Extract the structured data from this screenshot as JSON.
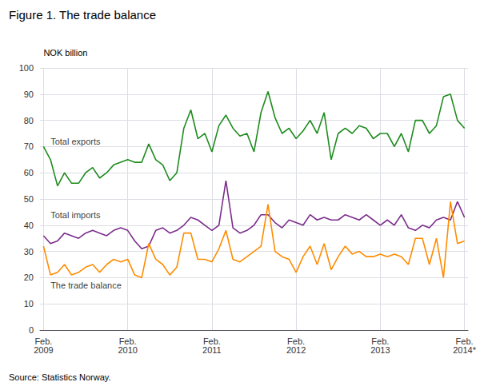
{
  "chart_data": {
    "type": "line",
    "title": "Figure 1. The trade balance",
    "ylabel": "NOK billion",
    "source": "Source: Statistics Norway.",
    "categories": [
      "Feb.\n2009",
      null,
      null,
      null,
      null,
      null,
      null,
      null,
      null,
      null,
      null,
      null,
      "Feb.\n2010",
      null,
      null,
      null,
      null,
      null,
      null,
      null,
      null,
      null,
      null,
      null,
      "Feb.\n2011",
      null,
      null,
      null,
      null,
      null,
      null,
      null,
      null,
      null,
      null,
      null,
      "Feb.\n2012",
      null,
      null,
      null,
      null,
      null,
      null,
      null,
      null,
      null,
      null,
      null,
      "Feb.\n2013",
      null,
      null,
      null,
      null,
      null,
      null,
      null,
      null,
      null,
      null,
      null,
      "Feb.\n2014*"
    ],
    "series": [
      {
        "name": "Total exports",
        "color": "#1e8c1e",
        "values": [
          70,
          65,
          55,
          60,
          56,
          56,
          60,
          62,
          58,
          60,
          63,
          64,
          65,
          64,
          64,
          71,
          65,
          63,
          57,
          60,
          77,
          84,
          73,
          75,
          68,
          78,
          82,
          77,
          74,
          75,
          68,
          83,
          91,
          81,
          75,
          77,
          73,
          76,
          80,
          75,
          83,
          65,
          75,
          77,
          75,
          78,
          77,
          73,
          75,
          75,
          70,
          75,
          68,
          80,
          80,
          75,
          78,
          89,
          90,
          80,
          77
        ]
      },
      {
        "name": "Total imports",
        "color": "#7b2d8b",
        "values": [
          36,
          33,
          34,
          37,
          36,
          35,
          37,
          38,
          37,
          36,
          38,
          39,
          38,
          34,
          31,
          32,
          38,
          39,
          37,
          38,
          40,
          43,
          42,
          40,
          38,
          40,
          57,
          39,
          37,
          38,
          40,
          44,
          44,
          41,
          39,
          42,
          41,
          40,
          44,
          42,
          43,
          42,
          42,
          44,
          43,
          42,
          44,
          42,
          40,
          42,
          40,
          44,
          39,
          38,
          40,
          39,
          42,
          43,
          42,
          49,
          43
        ]
      },
      {
        "name": "The trade balance",
        "color": "#ff8c00",
        "values": [
          32,
          21,
          22,
          25,
          21,
          22,
          24,
          25,
          22,
          25,
          27,
          26,
          27,
          21,
          20,
          33,
          27,
          25,
          21,
          24,
          37,
          37,
          27,
          27,
          26,
          31,
          38,
          27,
          26,
          28,
          30,
          32,
          48,
          30,
          28,
          27,
          22,
          28,
          32,
          25,
          33,
          23,
          28,
          32,
          29,
          30,
          28,
          28,
          29,
          28,
          29,
          28,
          25,
          35,
          35,
          25,
          35,
          20,
          49,
          33,
          34
        ]
      }
    ],
    "annotations": [
      {
        "text": "Total exports",
        "x": 1,
        "y": 72
      },
      {
        "text": "Total imports",
        "x": 1,
        "y": 44
      },
      {
        "text": "The trade balance",
        "x": 1,
        "y": 17
      }
    ],
    "ylim": [
      0,
      100
    ],
    "yticks": [
      0,
      10,
      20,
      30,
      40,
      50,
      60,
      70,
      80,
      90,
      100
    ],
    "grid": true
  }
}
